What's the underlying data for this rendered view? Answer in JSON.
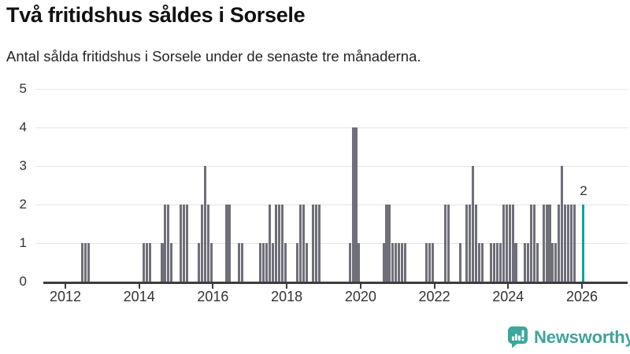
{
  "header": {
    "title": "Två fritidshus såldes i Sorsele",
    "subtitle": "Antal sålda fritidshus i Sorsele under de senaste tre månaderna."
  },
  "branding": {
    "logo_text": "Newsworthy",
    "logo_color": "#3fa49b",
    "icon_name": "chart-speech-bubble-icon"
  },
  "chart_data": {
    "type": "bar",
    "title": "Två fritidshus såldes i Sorsele",
    "subtitle": "Antal sålda fritidshus i Sorsele under de senaste tre månaderna.",
    "xlabel": "",
    "ylabel": "",
    "ylim": [
      0,
      5
    ],
    "grid": true,
    "legend": "none",
    "y_ticks": [
      "0",
      "1",
      "2",
      "3",
      "4",
      "5"
    ],
    "x_ticks": [
      "2012",
      "2014",
      "2016",
      "2018",
      "2020",
      "2022",
      "2024",
      "2026"
    ],
    "x_domain_months": [
      "2011-06",
      "2026-09"
    ],
    "bar_color": "#6f6f79",
    "highlight_color": "#0aa3a0",
    "grid_color": "#e4e4e4",
    "axis_color": "#3d3d3d",
    "label_color": "#333333",
    "monthly_values": [
      [
        "2012-06",
        1
      ],
      [
        "2012-07",
        1
      ],
      [
        "2012-08",
        1
      ],
      [
        "2014-02",
        1
      ],
      [
        "2014-03",
        1
      ],
      [
        "2014-04",
        1
      ],
      [
        "2014-08",
        1
      ],
      [
        "2014-09",
        2
      ],
      [
        "2014-10",
        2
      ],
      [
        "2014-11",
        1
      ],
      [
        "2015-02",
        2
      ],
      [
        "2015-03",
        2
      ],
      [
        "2015-04",
        2
      ],
      [
        "2015-08",
        1
      ],
      [
        "2015-09",
        2
      ],
      [
        "2015-10",
        3
      ],
      [
        "2015-11",
        2
      ],
      [
        "2015-12",
        1
      ],
      [
        "2016-05",
        2
      ],
      [
        "2016-06",
        2
      ],
      [
        "2016-09",
        1
      ],
      [
        "2016-10",
        1
      ],
      [
        "2017-04",
        1
      ],
      [
        "2017-05",
        1
      ],
      [
        "2017-06",
        1
      ],
      [
        "2017-07",
        2
      ],
      [
        "2017-08",
        1
      ],
      [
        "2017-09",
        2
      ],
      [
        "2017-10",
        2
      ],
      [
        "2017-11",
        2
      ],
      [
        "2017-12",
        1
      ],
      [
        "2018-04",
        1
      ],
      [
        "2018-05",
        2
      ],
      [
        "2018-06",
        2
      ],
      [
        "2018-07",
        1
      ],
      [
        "2018-09",
        2
      ],
      [
        "2018-10",
        2
      ],
      [
        "2018-11",
        2
      ],
      [
        "2019-09",
        1
      ],
      [
        "2019-10",
        4
      ],
      [
        "2019-11",
        4
      ],
      [
        "2019-12",
        1
      ],
      [
        "2020-08",
        1
      ],
      [
        "2020-09",
        2
      ],
      [
        "2020-10",
        2
      ],
      [
        "2020-11",
        1
      ],
      [
        "2020-12",
        1
      ],
      [
        "2021-01",
        1
      ],
      [
        "2021-02",
        1
      ],
      [
        "2021-03",
        1
      ],
      [
        "2021-10",
        1
      ],
      [
        "2021-11",
        1
      ],
      [
        "2021-12",
        1
      ],
      [
        "2022-04",
        2
      ],
      [
        "2022-05",
        2
      ],
      [
        "2022-09",
        1
      ],
      [
        "2022-11",
        2
      ],
      [
        "2022-12",
        2
      ],
      [
        "2023-01",
        3
      ],
      [
        "2023-02",
        2
      ],
      [
        "2023-03",
        1
      ],
      [
        "2023-04",
        1
      ],
      [
        "2023-07",
        1
      ],
      [
        "2023-08",
        1
      ],
      [
        "2023-09",
        1
      ],
      [
        "2023-10",
        1
      ],
      [
        "2023-11",
        2
      ],
      [
        "2023-12",
        2
      ],
      [
        "2024-01",
        2
      ],
      [
        "2024-02",
        2
      ],
      [
        "2024-03",
        1
      ],
      [
        "2024-06",
        1
      ],
      [
        "2024-07",
        1
      ],
      [
        "2024-08",
        2
      ],
      [
        "2024-09",
        2
      ],
      [
        "2024-10",
        1
      ],
      [
        "2024-12",
        2
      ],
      [
        "2025-01",
        2
      ],
      [
        "2025-02",
        2
      ],
      [
        "2025-03",
        1
      ],
      [
        "2025-04",
        1
      ],
      [
        "2025-05",
        2
      ],
      [
        "2025-06",
        3
      ],
      [
        "2025-07",
        2
      ],
      [
        "2025-08",
        2
      ],
      [
        "2025-09",
        2
      ],
      [
        "2025-10",
        2
      ]
    ],
    "highlight": {
      "m": "2026-01",
      "v": 2,
      "label": "2"
    }
  }
}
